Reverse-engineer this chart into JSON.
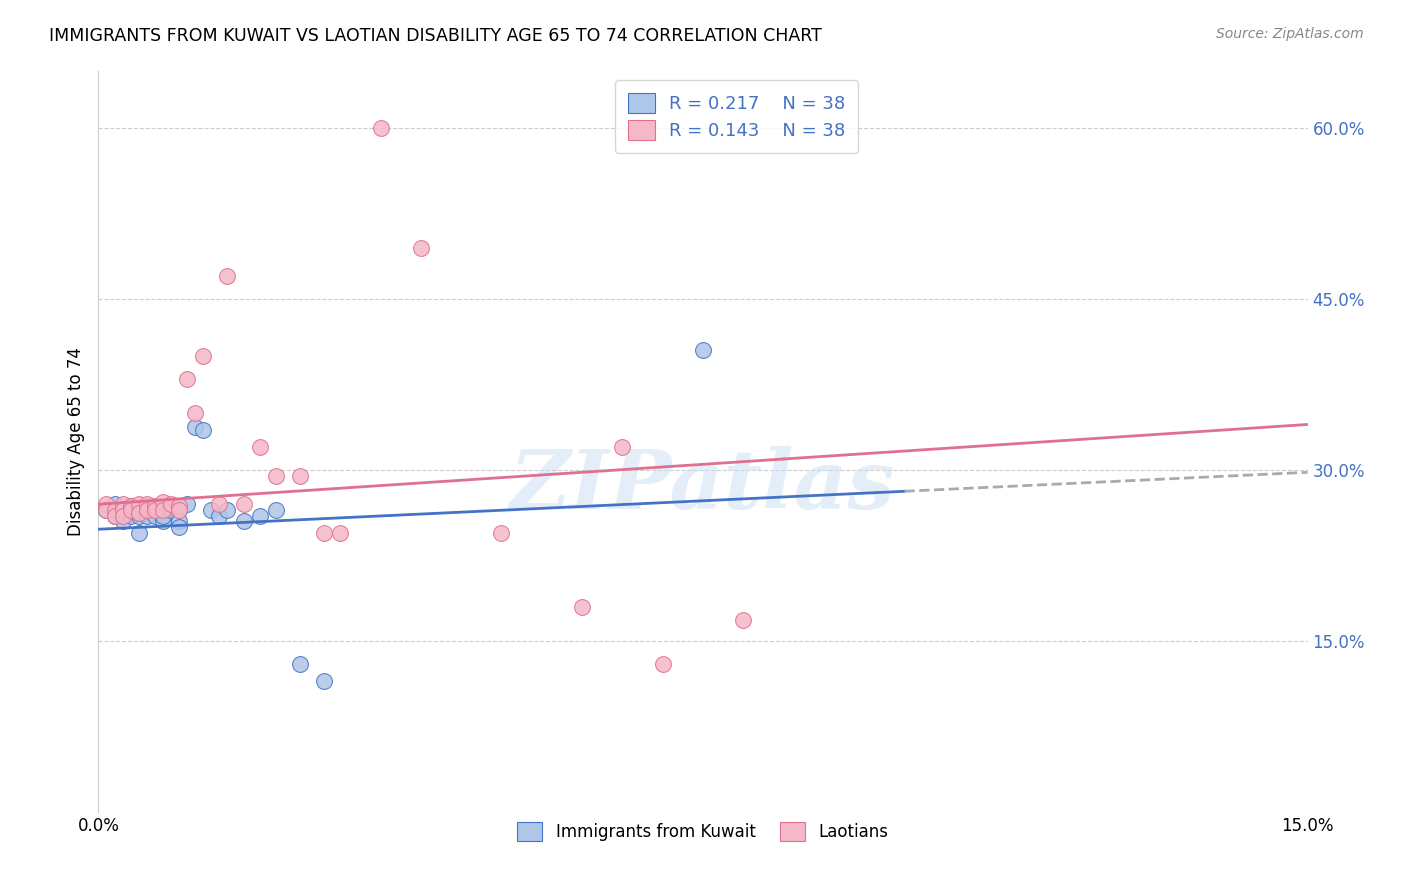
{
  "title": "IMMIGRANTS FROM KUWAIT VS LAOTIAN DISABILITY AGE 65 TO 74 CORRELATION CHART",
  "source": "Source: ZipAtlas.com",
  "ylabel": "Disability Age 65 to 74",
  "xlim": [
    0.0,
    0.15
  ],
  "ylim": [
    0.0,
    0.65
  ],
  "xtick_labels": [
    "0.0%",
    "15.0%"
  ],
  "ytick_positions": [
    0.15,
    0.3,
    0.45,
    0.6
  ],
  "ytick_labels": [
    "15.0%",
    "30.0%",
    "45.0%",
    "60.0%"
  ],
  "legend_label1": "Immigrants from Kuwait",
  "legend_label2": "Laotians",
  "r1": "0.217",
  "n1": "38",
  "r2": "0.143",
  "n2": "38",
  "color1": "#aec6e8",
  "color2": "#f5b8c8",
  "line_color1": "#4472c4",
  "line_color2": "#e07090",
  "watermark": "ZIPatlas",
  "background_color": "#ffffff",
  "grid_color": "#cccccc",
  "kuwait_x": [
    0.001,
    0.002,
    0.002,
    0.002,
    0.003,
    0.003,
    0.003,
    0.004,
    0.004,
    0.004,
    0.005,
    0.005,
    0.005,
    0.006,
    0.006,
    0.006,
    0.007,
    0.007,
    0.008,
    0.008,
    0.008,
    0.009,
    0.01,
    0.01,
    0.011,
    0.012,
    0.013,
    0.014,
    0.015,
    0.016,
    0.018,
    0.02,
    0.022,
    0.025,
    0.028,
    0.075,
    0.01,
    0.005
  ],
  "kuwait_y": [
    0.265,
    0.27,
    0.265,
    0.26,
    0.265,
    0.26,
    0.255,
    0.268,
    0.265,
    0.26,
    0.26,
    0.265,
    0.262,
    0.268,
    0.265,
    0.26,
    0.265,
    0.26,
    0.265,
    0.255,
    0.26,
    0.265,
    0.265,
    0.255,
    0.27,
    0.338,
    0.335,
    0.265,
    0.26,
    0.265,
    0.255,
    0.26,
    0.265,
    0.13,
    0.115,
    0.405,
    0.25,
    0.245
  ],
  "laotian_x": [
    0.001,
    0.001,
    0.002,
    0.002,
    0.003,
    0.003,
    0.003,
    0.004,
    0.004,
    0.005,
    0.005,
    0.006,
    0.006,
    0.007,
    0.007,
    0.008,
    0.008,
    0.009,
    0.01,
    0.01,
    0.011,
    0.012,
    0.013,
    0.015,
    0.016,
    0.018,
    0.02,
    0.022,
    0.025,
    0.028,
    0.03,
    0.035,
    0.04,
    0.05,
    0.06,
    0.065,
    0.07,
    0.08
  ],
  "laotian_y": [
    0.27,
    0.265,
    0.265,
    0.26,
    0.27,
    0.265,
    0.26,
    0.268,
    0.265,
    0.27,
    0.262,
    0.27,
    0.265,
    0.268,
    0.265,
    0.272,
    0.265,
    0.27,
    0.268,
    0.265,
    0.38,
    0.35,
    0.4,
    0.27,
    0.47,
    0.27,
    0.32,
    0.295,
    0.295,
    0.245,
    0.245,
    0.6,
    0.495,
    0.245,
    0.18,
    0.32,
    0.13,
    0.168
  ],
  "trend1_x0": 0.0,
  "trend1_y0": 0.248,
  "trend1_x1": 0.15,
  "trend1_y1": 0.298,
  "trend2_x0": 0.0,
  "trend2_y0": 0.27,
  "trend2_x1": 0.15,
  "trend2_y1": 0.34,
  "trend1_solid_end": 0.1,
  "trend2_solid_end": 0.085
}
